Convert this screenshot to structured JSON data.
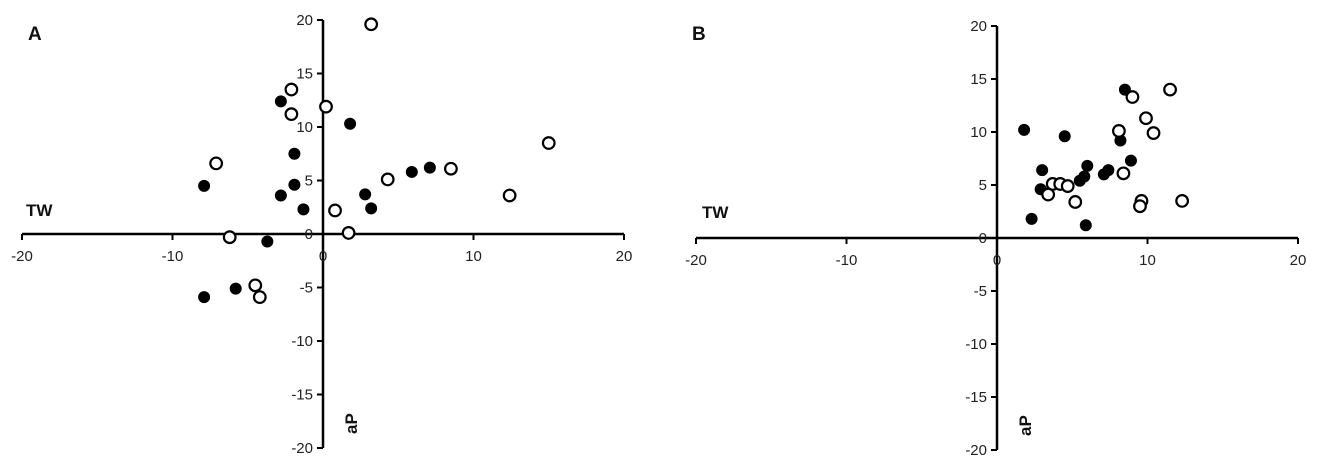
{
  "chart_data": [
    {
      "type": "scatter",
      "panel_label": "A",
      "xlabel": "TW",
      "ylabel": "aP",
      "xlim": [
        -20,
        20
      ],
      "ylim": [
        -20,
        20
      ],
      "x_ticks": [
        "-20",
        "-10",
        "0",
        "10",
        "20"
      ],
      "y_ticks": [
        "20",
        "15",
        "10",
        "5",
        "0",
        "-5",
        "-10",
        "-15",
        "-20"
      ],
      "grid": false,
      "legend": "none",
      "series": [
        {
          "marker": "filled",
          "color": "#000000",
          "points": [
            {
              "x": -2.8,
              "y": 12.4
            },
            {
              "x": 1.8,
              "y": 10.3
            },
            {
              "x": -1.9,
              "y": 7.5
            },
            {
              "x": -7.9,
              "y": 4.5
            },
            {
              "x": -1.9,
              "y": 4.6
            },
            {
              "x": -2.8,
              "y": 3.6
            },
            {
              "x": -1.3,
              "y": 2.3
            },
            {
              "x": 2.8,
              "y": 3.7
            },
            {
              "x": 3.2,
              "y": 2.4
            },
            {
              "x": 5.9,
              "y": 5.8
            },
            {
              "x": 7.1,
              "y": 6.2
            },
            {
              "x": -3.7,
              "y": -0.7
            },
            {
              "x": -7.9,
              "y": -5.9
            },
            {
              "x": -5.8,
              "y": -5.1
            }
          ]
        },
        {
          "marker": "open",
          "color": "#000000",
          "points": [
            {
              "x": 3.2,
              "y": 19.6
            },
            {
              "x": -2.1,
              "y": 13.5
            },
            {
              "x": -2.1,
              "y": 11.2
            },
            {
              "x": 0.2,
              "y": 11.9
            },
            {
              "x": -7.1,
              "y": 6.6
            },
            {
              "x": 4.3,
              "y": 5.1
            },
            {
              "x": 8.5,
              "y": 6.1
            },
            {
              "x": 15.0,
              "y": 8.5
            },
            {
              "x": 12.4,
              "y": 3.6
            },
            {
              "x": 0.8,
              "y": 2.2
            },
            {
              "x": 1.7,
              "y": 0.1
            },
            {
              "x": -6.2,
              "y": -0.3
            },
            {
              "x": -4.5,
              "y": -4.8
            },
            {
              "x": -4.2,
              "y": -5.9
            }
          ]
        }
      ]
    },
    {
      "type": "scatter",
      "panel_label": "B",
      "xlabel": "TW",
      "ylabel": "aP",
      "xlim": [
        -20,
        20
      ],
      "ylim": [
        -20,
        20
      ],
      "x_ticks": [
        "-20",
        "-10",
        "0",
        "10",
        "20"
      ],
      "y_ticks": [
        "20",
        "15",
        "10",
        "5",
        "0",
        "-5",
        "-10",
        "-15",
        "-20"
      ],
      "grid": false,
      "legend": "none",
      "series": [
        {
          "marker": "filled",
          "color": "#000000",
          "points": [
            {
              "x": 8.5,
              "y": 14.0
            },
            {
              "x": 1.8,
              "y": 10.2
            },
            {
              "x": 4.5,
              "y": 9.6
            },
            {
              "x": 8.2,
              "y": 9.2
            },
            {
              "x": 8.9,
              "y": 7.3
            },
            {
              "x": 6.0,
              "y": 6.8
            },
            {
              "x": 7.4,
              "y": 6.4
            },
            {
              "x": 7.1,
              "y": 6.0
            },
            {
              "x": 3.0,
              "y": 6.4
            },
            {
              "x": 5.5,
              "y": 5.4
            },
            {
              "x": 5.8,
              "y": 5.8
            },
            {
              "x": 2.9,
              "y": 4.6
            },
            {
              "x": 2.3,
              "y": 1.8
            },
            {
              "x": 5.9,
              "y": 1.2
            }
          ]
        },
        {
          "marker": "open",
          "color": "#000000",
          "points": [
            {
              "x": 11.5,
              "y": 14.0
            },
            {
              "x": 9.0,
              "y": 13.3
            },
            {
              "x": 9.9,
              "y": 11.3
            },
            {
              "x": 8.1,
              "y": 10.1
            },
            {
              "x": 10.4,
              "y": 9.9
            },
            {
              "x": 8.4,
              "y": 6.1
            },
            {
              "x": 3.7,
              "y": 5.1
            },
            {
              "x": 4.2,
              "y": 5.1
            },
            {
              "x": 4.7,
              "y": 4.9
            },
            {
              "x": 3.4,
              "y": 4.1
            },
            {
              "x": 5.2,
              "y": 3.4
            },
            {
              "x": 9.6,
              "y": 3.5
            },
            {
              "x": 9.5,
              "y": 3.0
            },
            {
              "x": 12.3,
              "y": 3.5
            }
          ]
        }
      ]
    }
  ]
}
